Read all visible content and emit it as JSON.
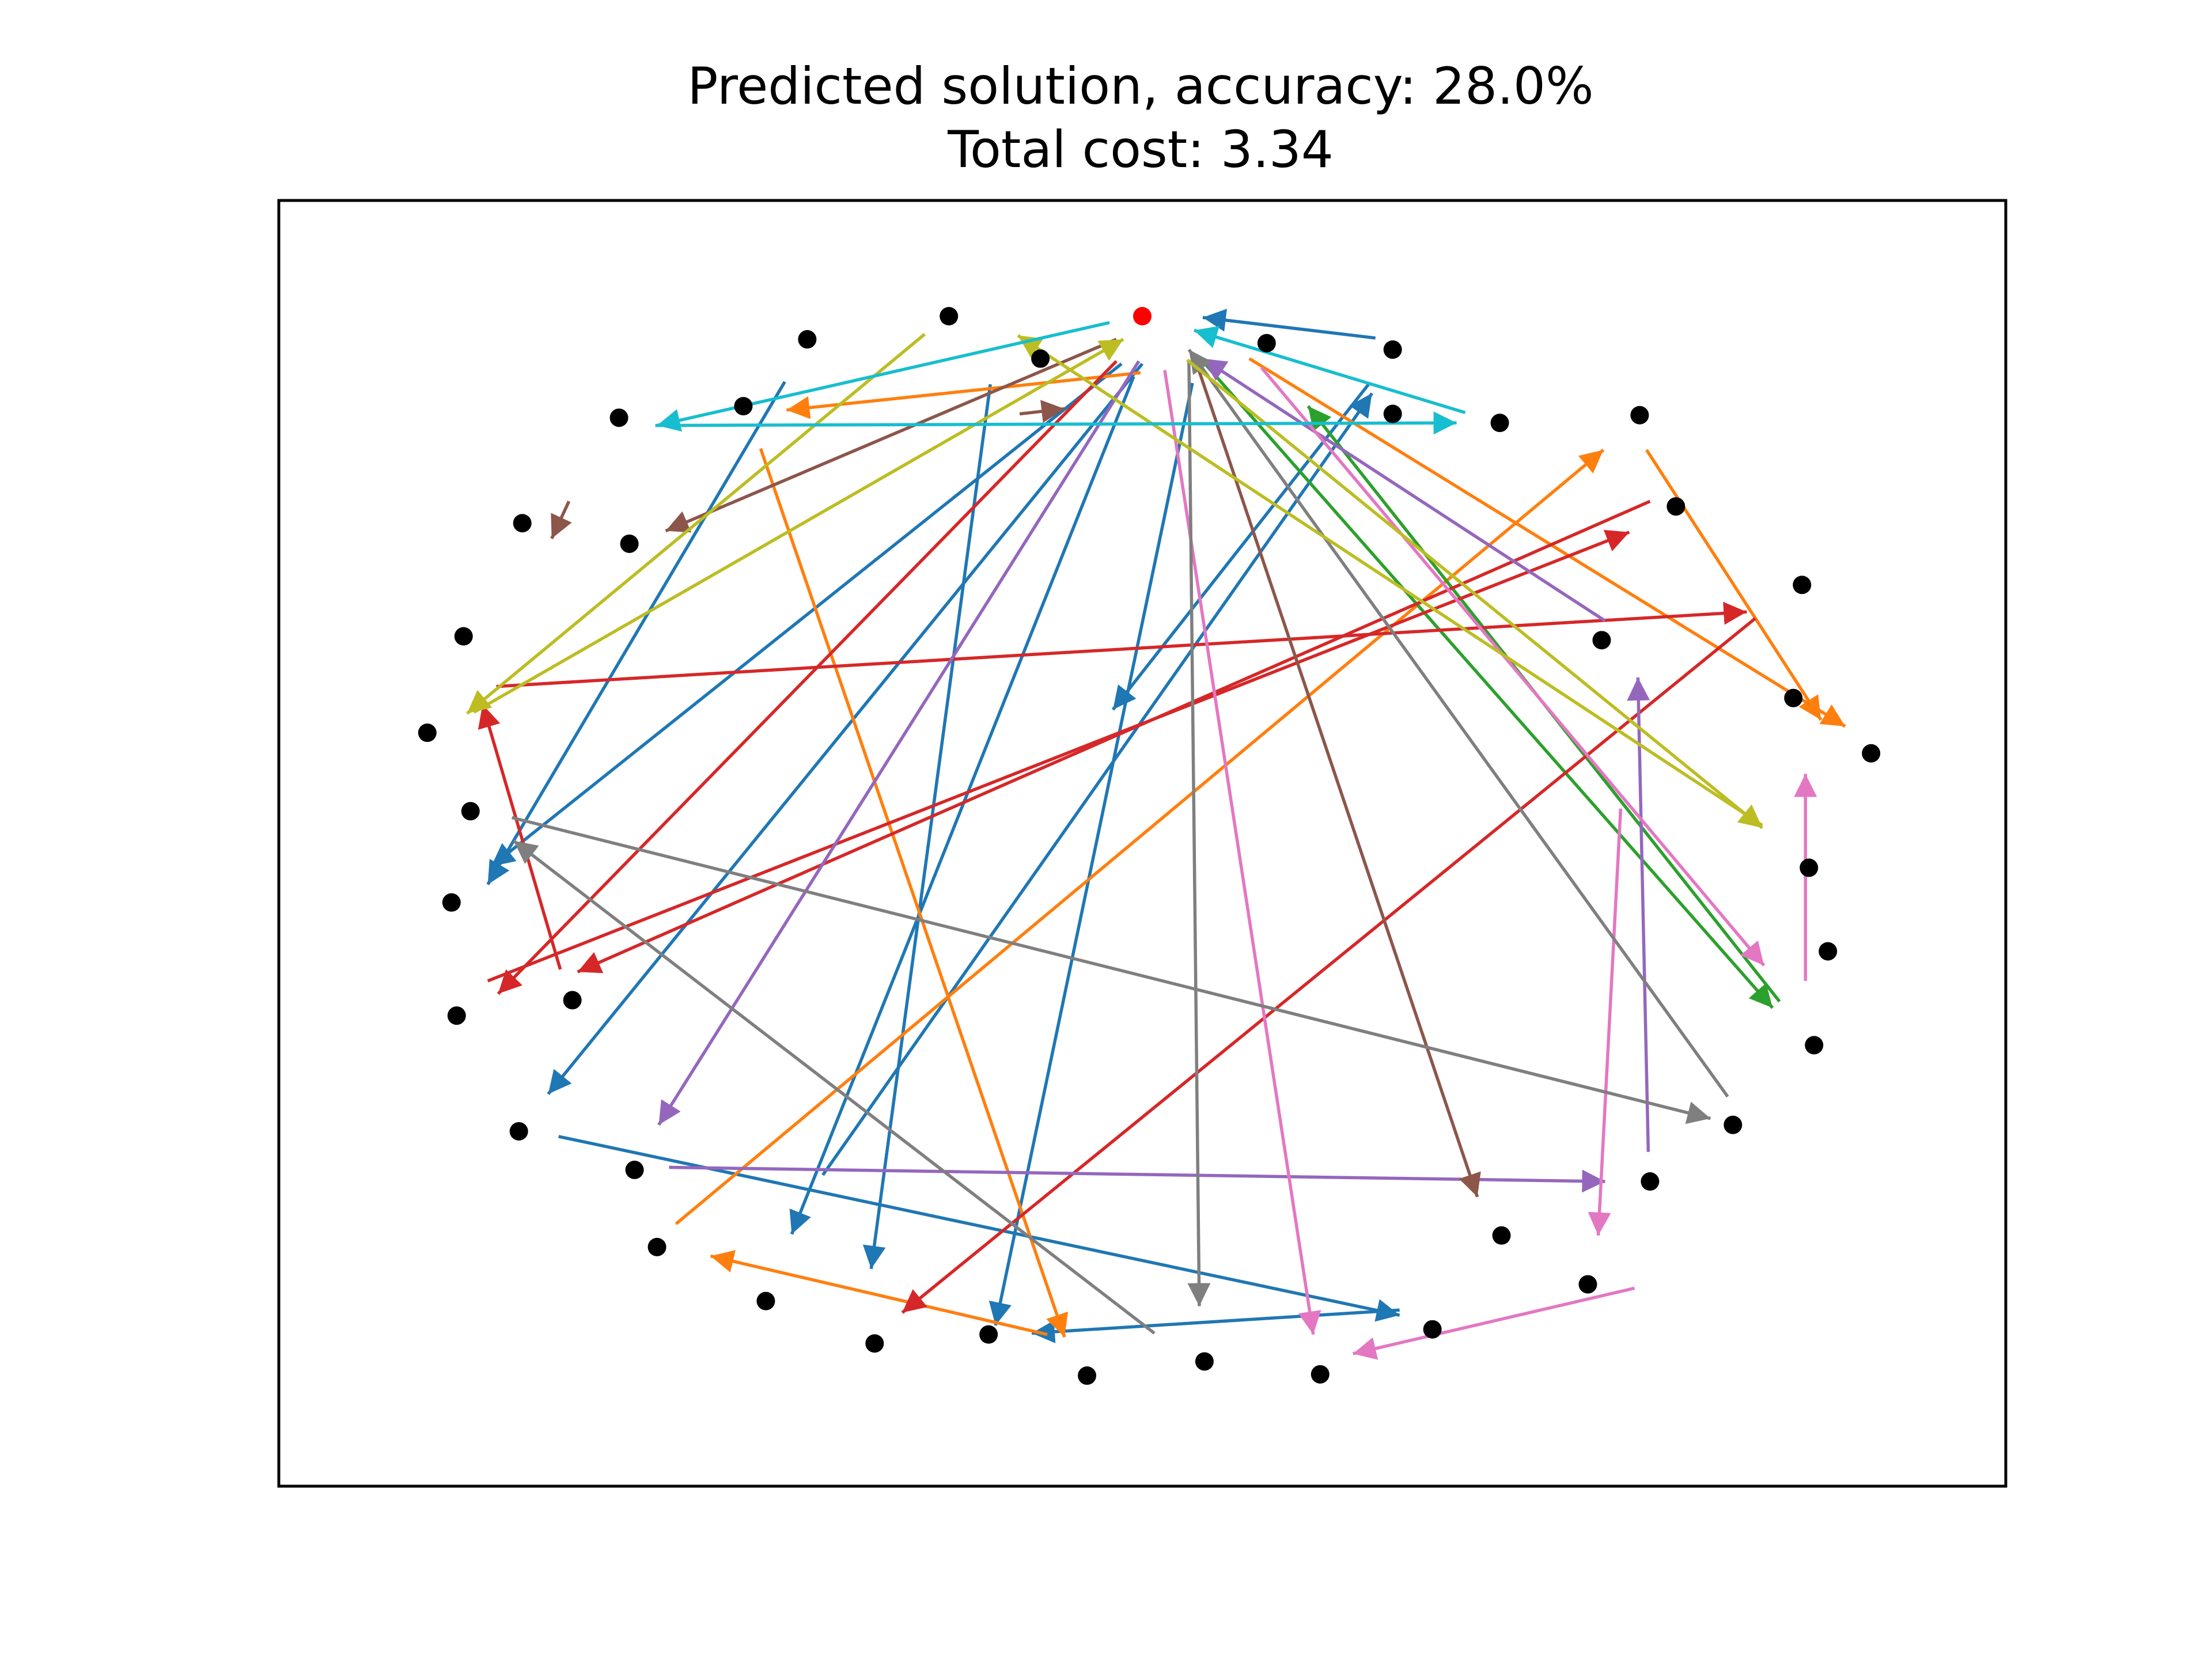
{
  "chart_data": {
    "type": "scatter",
    "title": "Predicted solution, accuracy: 28.0%",
    "subtitle": "Total cost: 3.34",
    "xlabel": "",
    "ylabel": "",
    "xlim": [
      0,
      100
    ],
    "ylim": [
      0,
      100
    ],
    "grid": false,
    "axes_ticks": false,
    "depot": {
      "x": 50.0,
      "y": 91.0,
      "color": "#ff0000"
    },
    "nodes": [
      {
        "x": 38.8,
        "y": 91.0
      },
      {
        "x": 30.6,
        "y": 89.2
      },
      {
        "x": 26.9,
        "y": 84.0
      },
      {
        "x": 19.7,
        "y": 83.1
      },
      {
        "x": 14.1,
        "y": 74.9
      },
      {
        "x": 20.3,
        "y": 73.3
      },
      {
        "x": 10.7,
        "y": 66.1
      },
      {
        "x": 8.6,
        "y": 58.6
      },
      {
        "x": 11.1,
        "y": 52.5
      },
      {
        "x": 10.0,
        "y": 45.4
      },
      {
        "x": 10.3,
        "y": 36.6
      },
      {
        "x": 17.0,
        "y": 37.8
      },
      {
        "x": 13.9,
        "y": 27.6
      },
      {
        "x": 20.6,
        "y": 24.6
      },
      {
        "x": 21.9,
        "y": 18.6
      },
      {
        "x": 28.2,
        "y": 14.4
      },
      {
        "x": 34.5,
        "y": 11.1
      },
      {
        "x": 41.1,
        "y": 11.8
      },
      {
        "x": 46.8,
        "y": 8.6
      },
      {
        "x": 53.6,
        "y": 9.7
      },
      {
        "x": 60.3,
        "y": 8.7
      },
      {
        "x": 66.8,
        "y": 12.2
      },
      {
        "x": 75.8,
        "y": 15.7
      },
      {
        "x": 70.8,
        "y": 19.5
      },
      {
        "x": 79.4,
        "y": 23.7
      },
      {
        "x": 84.2,
        "y": 28.1
      },
      {
        "x": 88.9,
        "y": 34.3
      },
      {
        "x": 89.7,
        "y": 41.6
      },
      {
        "x": 88.6,
        "y": 48.1
      },
      {
        "x": 92.2,
        "y": 57.0
      },
      {
        "x": 87.7,
        "y": 61.3
      },
      {
        "x": 76.6,
        "y": 65.8
      },
      {
        "x": 88.2,
        "y": 70.1
      },
      {
        "x": 80.9,
        "y": 76.2
      },
      {
        "x": 78.8,
        "y": 83.3
      },
      {
        "x": 70.7,
        "y": 82.7
      },
      {
        "x": 64.5,
        "y": 88.4
      },
      {
        "x": 57.2,
        "y": 88.9
      },
      {
        "x": 44.1,
        "y": 87.7
      },
      {
        "x": 64.5,
        "y": 83.4
      }
    ],
    "series": [
      {
        "name": "route-1",
        "color": "#1f77b4",
        "edges": [
          [
            63.5,
            89.3,
            53.5,
            90.9
          ],
          [
            48.8,
            87.3,
            12.3,
            48.2
          ],
          [
            50.0,
            87.3,
            15.6,
            30.5
          ],
          [
            63.1,
            85.7,
            48.3,
            60.4
          ],
          [
            49.5,
            86.3,
            29.7,
            19.6
          ],
          [
            41.2,
            85.7,
            34.3,
            16.9
          ],
          [
            52.9,
            85.8,
            41.5,
            12.5
          ],
          [
            64.9,
            13.7,
            43.6,
            11.9
          ],
          [
            16.2,
            27.2,
            64.9,
            13.3
          ],
          [
            31.5,
            24.2,
            63.3,
            85.0
          ],
          [
            29.3,
            85.9,
            12.1,
            46.8
          ]
        ]
      },
      {
        "name": "route-2",
        "color": "#ff7f0e",
        "edges": [
          [
            49.9,
            86.6,
            29.4,
            83.7
          ],
          [
            27.9,
            80.7,
            45.5,
            11.6
          ],
          [
            44.5,
            11.8,
            25.0,
            17.9
          ],
          [
            23.0,
            20.4,
            76.7,
            80.6
          ],
          [
            79.2,
            80.6,
            89.3,
            59.6
          ],
          [
            56.2,
            87.7,
            90.7,
            59.1
          ]
        ]
      },
      {
        "name": "route-3",
        "color": "#2ca02c",
        "edges": [
          [
            53.5,
            87.5,
            86.5,
            37.2
          ],
          [
            86.9,
            37.7,
            59.6,
            84.0
          ]
        ]
      },
      {
        "name": "route-4",
        "color": "#d62728",
        "edges": [
          [
            48.5,
            87.5,
            12.7,
            38.3
          ],
          [
            16.3,
            40.2,
            11.8,
            60.8
          ],
          [
            12.6,
            62.2,
            85.0,
            68.0
          ],
          [
            85.5,
            67.5,
            36.1,
            13.5
          ],
          [
            12.1,
            39.3,
            78.2,
            74.2
          ],
          [
            79.4,
            76.6,
            17.3,
            40.0
          ]
        ]
      },
      {
        "name": "route-5",
        "color": "#9467bd",
        "edges": [
          [
            49.8,
            87.5,
            22.0,
            28.1
          ],
          [
            22.6,
            24.8,
            76.8,
            23.7
          ],
          [
            79.3,
            26.0,
            78.7,
            62.9
          ],
          [
            76.8,
            67.3,
            53.5,
            87.7
          ]
        ]
      },
      {
        "name": "route-6",
        "color": "#8c564b",
        "edges": [
          [
            53.1,
            87.5,
            69.4,
            22.5
          ],
          [
            48.5,
            89.2,
            22.4,
            74.3
          ],
          [
            16.8,
            76.6,
            15.8,
            73.7
          ],
          [
            42.9,
            83.4,
            45.5,
            83.8
          ]
        ]
      },
      {
        "name": "route-7",
        "color": "#e377c2",
        "edges": [
          [
            51.3,
            86.8,
            59.9,
            11.8
          ],
          [
            78.5,
            15.4,
            62.2,
            10.3
          ],
          [
            77.7,
            52.7,
            76.4,
            19.5
          ],
          [
            88.4,
            39.3,
            88.4,
            55.4
          ],
          [
            56.9,
            87.0,
            86.0,
            40.5
          ]
        ]
      },
      {
        "name": "route-8",
        "color": "#7f7f7f",
        "edges": [
          [
            52.7,
            87.4,
            53.3,
            14.0
          ],
          [
            50.7,
            11.9,
            13.6,
            50.2
          ],
          [
            13.5,
            52.0,
            82.9,
            28.6
          ],
          [
            83.9,
            30.3,
            52.7,
            88.4
          ]
        ]
      },
      {
        "name": "route-9",
        "color": "#bcbd22",
        "edges": [
          [
            52.6,
            87.6,
            85.9,
            51.2
          ],
          [
            85.9,
            51.4,
            42.8,
            89.5
          ],
          [
            37.4,
            89.6,
            10.9,
            60.1
          ],
          [
            11.3,
            60.2,
            48.9,
            89.2
          ]
        ]
      },
      {
        "name": "route-10",
        "color": "#17becf",
        "edges": [
          [
            48.1,
            90.5,
            21.9,
            82.5
          ],
          [
            21.8,
            82.5,
            68.2,
            82.7
          ],
          [
            68.7,
            83.5,
            53.0,
            89.9
          ]
        ]
      }
    ]
  }
}
